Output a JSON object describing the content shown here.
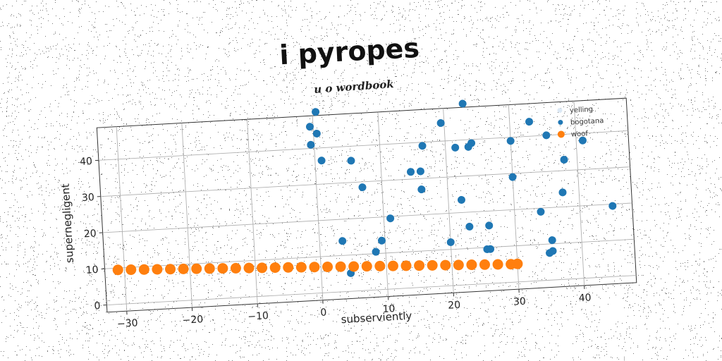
{
  "chart_data": {
    "type": "scatter",
    "title": "i pyropes",
    "subtitle": "u o wordbook",
    "xlabel": "subserviently",
    "ylabel": "supernegligent",
    "xlim": [
      -33,
      48
    ],
    "ylim": [
      -2,
      49
    ],
    "xticks": [
      -30,
      -20,
      -10,
      0,
      10,
      20,
      30,
      40
    ],
    "yticks": [
      0,
      10,
      20,
      30,
      40
    ],
    "grid": true,
    "legend_position": "top-right",
    "series": [
      {
        "name": "yelling",
        "color": "#dce9f5",
        "x": [],
        "y": []
      },
      {
        "name": "bogotana",
        "color": "#1f77b4",
        "x": [
          0.5,
          23,
          -0.5,
          0.5,
          -0.5,
          1,
          5.5,
          19.5,
          21.5,
          23.5,
          24,
          16.5,
          33,
          35.5,
          30,
          41,
          38,
          14.5,
          16,
          7,
          16,
          30,
          37.5,
          22,
          11,
          45,
          34,
          35.5,
          3.5,
          9.5,
          8.5,
          20,
          23,
          26,
          26,
          25.5,
          35.5,
          35,
          4.5
        ],
        "y": [
          50,
          50,
          46,
          44,
          41,
          36.5,
          36,
          45,
          38,
          38,
          39,
          39,
          44,
          40,
          39,
          38,
          33,
          32,
          32,
          28.5,
          27,
          29,
          24,
          23.5,
          19.5,
          19.5,
          19,
          11,
          14,
          13.5,
          10.5,
          12,
          16,
          16,
          9.5,
          9.5,
          8,
          7.5,
          5
        ]
      },
      {
        "name": "woof",
        "color": "#ff7f0e",
        "x": [
          -31,
          -29,
          -27,
          -25,
          -23,
          -21,
          -19,
          -17,
          -15,
          -13,
          -11,
          -9,
          -7,
          -5,
          -3,
          -1,
          1,
          3,
          5,
          7,
          9,
          11,
          13,
          15,
          17,
          19,
          21,
          23,
          25,
          27,
          29,
          30
        ],
        "y": [
          9.5,
          9.35,
          9.2,
          9.05,
          8.9,
          8.75,
          8.6,
          8.45,
          8.3,
          8.15,
          8.0,
          7.85,
          7.7,
          7.55,
          7.4,
          7.25,
          7.1,
          6.95,
          6.8,
          6.65,
          6.5,
          6.35,
          6.2,
          6.05,
          5.9,
          5.75,
          5.6,
          5.45,
          5.3,
          5.15,
          5.0,
          5.0
        ]
      }
    ]
  }
}
